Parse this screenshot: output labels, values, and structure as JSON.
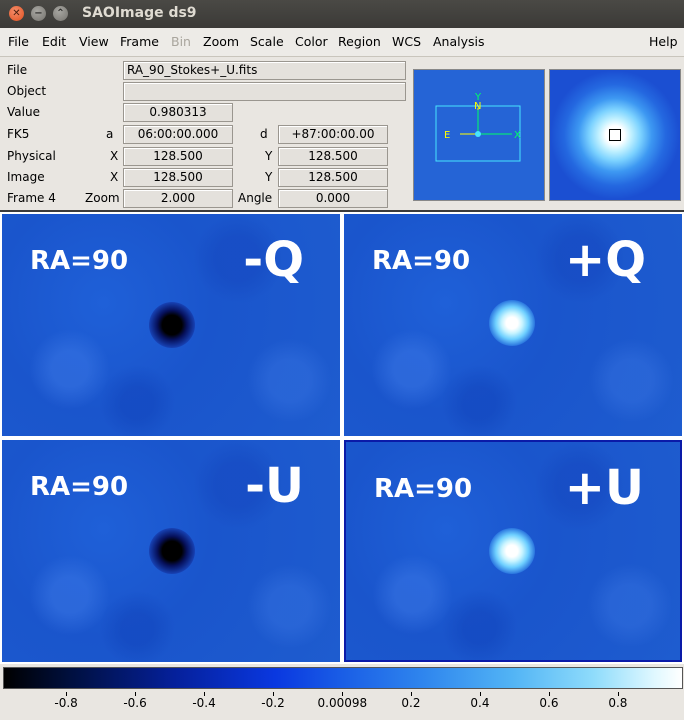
{
  "window": {
    "title": "SAOImage ds9"
  },
  "menubar": [
    "File",
    "Edit",
    "View",
    "Frame",
    "Bin",
    "Zoom",
    "Scale",
    "Color",
    "Region",
    "WCS",
    "Analysis",
    "Help"
  ],
  "menubar_disabled": [
    "Bin"
  ],
  "info": {
    "file_label": "File",
    "file_value": "RA_90_Stokes+_U.fits",
    "object_label": "Object",
    "object_value": "",
    "value_label": "Value",
    "value_value": "0.980313",
    "fk5_label": "FK5",
    "a_label": "a",
    "a_value": "06:00:00.000",
    "d_label": "d",
    "d_value": "+87:00:00.00",
    "physical_label": "Physical",
    "phys_x_label": "X",
    "phys_x": "128.500",
    "phys_y_label": "Y",
    "phys_y": "128.500",
    "image_label": "Image",
    "img_x_label": "X",
    "img_x": "128.500",
    "img_y_label": "Y",
    "img_y": "128.500",
    "frame_label": "Frame 4",
    "zoom_label": "Zoom",
    "zoom_value": "2.000",
    "angle_label": "Angle",
    "angle_value": "0.000"
  },
  "panner": {
    "north": "N",
    "east": "E",
    "y": "Y",
    "x": "X"
  },
  "frames": [
    {
      "ra": "RA=90",
      "stokes": "-Q",
      "spot": "dark"
    },
    {
      "ra": "RA=90",
      "stokes": "+Q",
      "spot": "bright"
    },
    {
      "ra": "RA=90",
      "stokes": "-U",
      "spot": "dark"
    },
    {
      "ra": "RA=90",
      "stokes": "+U",
      "spot": "bright",
      "selected": true
    }
  ],
  "colorbar": {
    "ticks": [
      {
        "label": "-0.8",
        "value": -0.8
      },
      {
        "label": "-0.6",
        "value": -0.6
      },
      {
        "label": "-0.4",
        "value": -0.4
      },
      {
        "label": "-0.2",
        "value": -0.2
      },
      {
        "label": "0.00098",
        "value": 0.00098
      },
      {
        "label": "0.2",
        "value": 0.2
      },
      {
        "label": "0.4",
        "value": 0.4
      },
      {
        "label": "0.6",
        "value": 0.6
      },
      {
        "label": "0.8",
        "value": 0.8
      }
    ],
    "min": -0.98,
    "max": 0.98
  }
}
